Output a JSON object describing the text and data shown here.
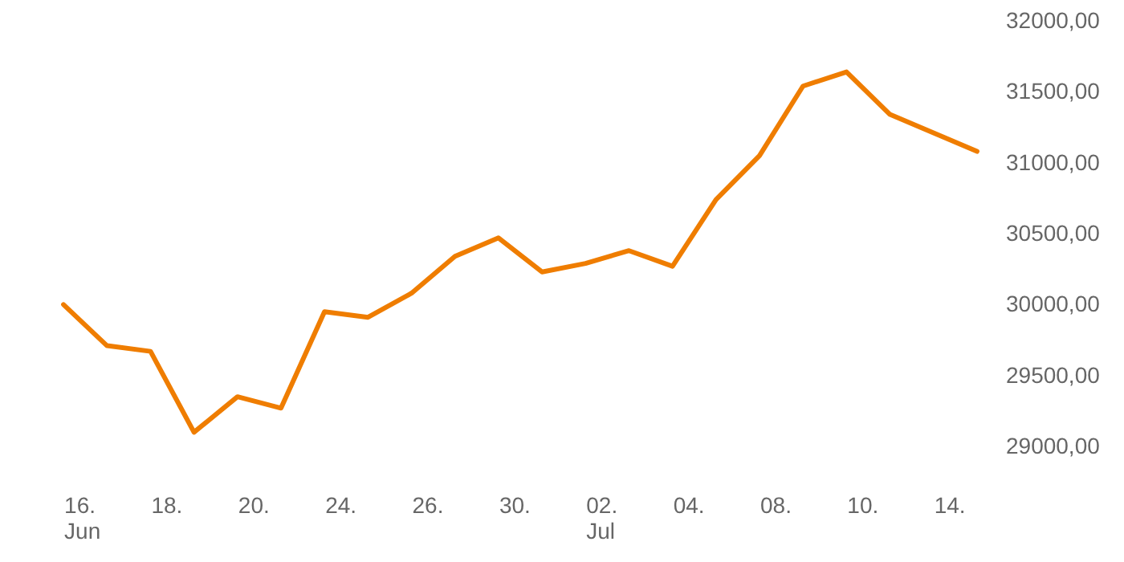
{
  "chart_data": {
    "type": "line",
    "categories": [
      "16.\nJun",
      null,
      "18.",
      null,
      "20.",
      null,
      "24.",
      null,
      "26.",
      null,
      "30.",
      null,
      "02.\nJul",
      null,
      "04.",
      null,
      "08.",
      null,
      "10.",
      null,
      "14.",
      null
    ],
    "series": [
      {
        "color": "#ef7d00",
        "values": [
          30000,
          29710,
          29670,
          29100,
          29350,
          29270,
          29950,
          29910,
          30080,
          30340,
          30470,
          30230,
          30290,
          30380,
          30270,
          30740,
          31050,
          31540,
          31640,
          31340,
          31210,
          31080
        ]
      }
    ],
    "ylim": [
      29000,
      32000
    ],
    "yticks": [
      {
        "value": 29000,
        "label": "29000,00"
      },
      {
        "value": 29500,
        "label": "29500,00"
      },
      {
        "value": 30000,
        "label": "30000,00"
      },
      {
        "value": 30500,
        "label": "30500,00"
      },
      {
        "value": 31000,
        "label": "31000,00"
      },
      {
        "value": 31500,
        "label": "31500,00"
      },
      {
        "value": 32000,
        "label": "32000,00"
      }
    ],
    "grid": false,
    "marker": "none",
    "line_style": "solid"
  }
}
